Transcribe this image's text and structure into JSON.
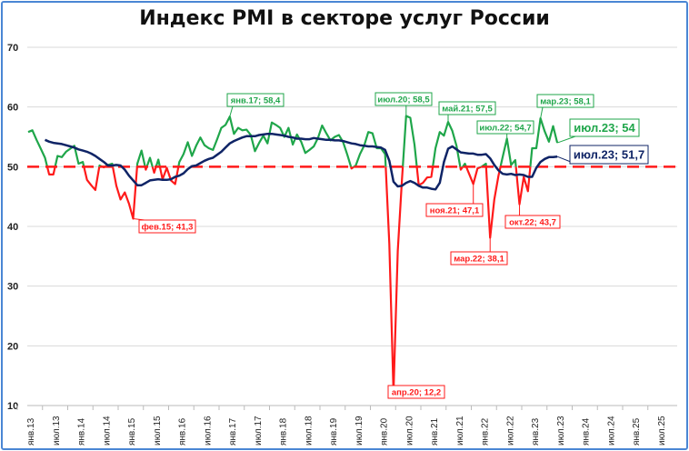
{
  "chart_data": {
    "type": "line",
    "title": "Индекс PMI в секторе услуг России",
    "xlabel": "",
    "ylabel": "",
    "ylim": [
      10,
      70
    ],
    "yticks": [
      "10",
      "20",
      "30",
      "40",
      "50",
      "60",
      "70"
    ],
    "grid": true,
    "threshold": 50,
    "x_tick_labels": [
      "янв.13",
      "июл.13",
      "янв.14",
      "июл.14",
      "янв.15",
      "июл.15",
      "янв.16",
      "июл.16",
      "янв.17",
      "июл.17",
      "янв.18",
      "июл.18",
      "янв.19",
      "июл.19",
      "янв.20",
      "июл.20",
      "янв.21",
      "июл.21",
      "янв.22",
      "июл.22",
      "янв.23",
      "июл.23",
      "янв.24",
      "июл.24",
      "янв.25",
      "июл.25"
    ],
    "series": [
      {
        "start": "янв.13",
        "frequency": "monthly",
        "color_above": "#1fa64a",
        "color_below": "#ff1a1a",
        "values": [
          55.8,
          56.1,
          54.5,
          53.0,
          51.5,
          48.7,
          48.7,
          51.8,
          51.6,
          52.5,
          53.0,
          53.5,
          50.5,
          50.8,
          47.8,
          46.9,
          46.1,
          50.2,
          49.9,
          50.3,
          50.5,
          46.8,
          44.5,
          45.7,
          43.8,
          41.3,
          50.5,
          52.7,
          49.5,
          51.5,
          49.0,
          51.2,
          47.9,
          49.8,
          47.7,
          47.1,
          50.8,
          52.1,
          54.1,
          51.8,
          53.5,
          54.9,
          53.6,
          53.1,
          52.8,
          54.6,
          56.5,
          57.0,
          58.4,
          55.5,
          56.5,
          56.1,
          56.2,
          55.3,
          52.6,
          54.0,
          55.2,
          53.9,
          57.4,
          57.0,
          56.5,
          55.0,
          56.5,
          53.7,
          55.4,
          54.2,
          52.3,
          52.8,
          53.4,
          54.8,
          56.9,
          55.6,
          54.4,
          55.0,
          55.3,
          54.1,
          52.0,
          49.7,
          50.2,
          52.1,
          53.5,
          55.8,
          55.6,
          53.1,
          53.1,
          52.1,
          37.1,
          12.2,
          35.9,
          47.8,
          58.5,
          58.2,
          53.7,
          46.9,
          47.3,
          48.2,
          48.3,
          53.1,
          55.8,
          55.2,
          57.5,
          56.0,
          53.5,
          49.5,
          50.5,
          48.8,
          47.1,
          49.7,
          50.0,
          50.5,
          38.1,
          44.5,
          48.5,
          51.7,
          54.7,
          50.3,
          51.1,
          43.7,
          48.3,
          45.9,
          53.1,
          53.1,
          58.1,
          55.9,
          54.2,
          56.8,
          54.0
        ]
      },
      {
        "start": "май.13",
        "frequency": "monthly",
        "color": "#0f2466",
        "values": [
          54.5,
          54.2,
          54.0,
          53.9,
          53.8,
          53.6,
          53.4,
          53.2,
          52.9,
          52.7,
          52.5,
          52.2,
          51.8,
          51.3,
          50.8,
          50.2,
          50.2,
          50.3,
          50.2,
          49.5,
          48.5,
          47.7,
          46.9,
          46.9,
          47.3,
          47.7,
          47.8,
          47.9,
          47.8,
          47.8,
          47.9,
          48.3,
          48.5,
          48.9,
          49.6,
          50.1,
          50.2,
          50.6,
          51.0,
          51.3,
          51.5,
          52.0,
          52.5,
          53.2,
          53.9,
          54.3,
          54.6,
          54.9,
          55.1,
          55.1,
          55.1,
          55.3,
          55.4,
          55.5,
          55.5,
          55.4,
          55.3,
          55.2,
          55.0,
          54.9,
          54.7,
          54.7,
          54.6,
          54.6,
          54.8,
          54.7,
          54.6,
          54.5,
          54.5,
          54.4,
          54.4,
          54.3,
          54.1,
          53.9,
          53.8,
          53.6,
          53.5,
          53.4,
          53.4,
          53.3,
          53.2,
          52.8,
          51.0,
          47.5,
          46.7,
          46.8,
          47.3,
          47.6,
          47.3,
          46.8,
          46.5,
          46.5,
          46.3,
          46.2,
          47.3,
          50.8,
          53.0,
          53.4,
          52.9,
          52.4,
          52.3,
          52.2,
          52.2,
          52.0,
          52.0,
          52.1,
          51.4,
          50.3,
          49.4,
          48.8,
          48.7,
          48.8,
          48.6,
          48.7,
          48.6,
          48.3,
          48.3,
          49.8,
          50.8,
          51.3,
          51.6,
          51.6,
          51.7
        ]
      }
    ],
    "annotations": [
      {
        "text": "янв.17; 58,4",
        "color": "#1fa64a"
      },
      {
        "text": "фев.15; 41,3",
        "color": "#ff1a1a"
      },
      {
        "text": "июл.20; 58,5",
        "color": "#1fa64a"
      },
      {
        "text": "май.21; 57,5",
        "color": "#1fa64a"
      },
      {
        "text": "июл.22; 54,7",
        "color": "#1fa64a"
      },
      {
        "text": "мар.23; 58,1",
        "color": "#1fa64a"
      },
      {
        "text": "июл.23; 54",
        "color": "#1fa64a"
      },
      {
        "text": "июл.23; 51,7",
        "color": "#0f2466"
      },
      {
        "text": "ноя.21; 47,1",
        "color": "#ff1a1a"
      },
      {
        "text": "мар.22; 38,1",
        "color": "#ff1a1a"
      },
      {
        "text": "окт.22; 43,7",
        "color": "#ff1a1a"
      },
      {
        "text": "апр.20; 12,2",
        "color": "#ff1a1a"
      }
    ]
  }
}
